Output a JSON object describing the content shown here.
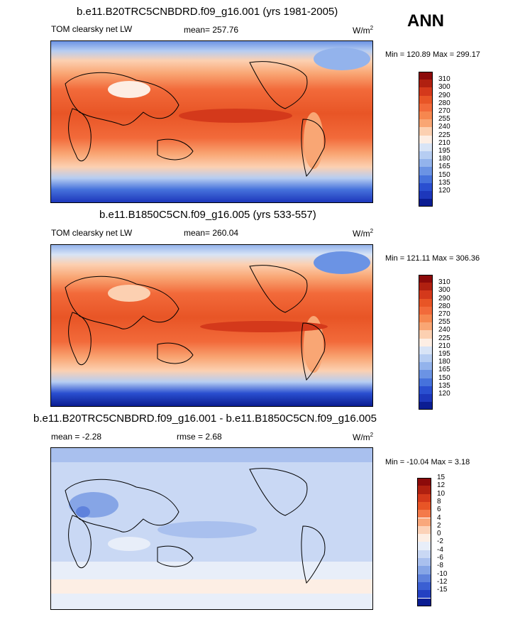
{
  "season": "ANN",
  "chart_data": [
    {
      "type": "heatmap",
      "title": "b.e11.B20TRC5CNBDRD.f09_g16.001 (yrs 1981-2005)",
      "variable": "TOM clearsky net LW",
      "stat_text": "mean= 257.76",
      "mean": 257.76,
      "units_base": "W/m",
      "units_exp": "2",
      "minmax_text": "Min = 120.89 Max = 299.17",
      "min": 120.89,
      "max": 299.17,
      "levels": [
        "310",
        "300",
        "290",
        "280",
        "270",
        "255",
        "240",
        "225",
        "210",
        "195",
        "180",
        "165",
        "150",
        "135",
        "120"
      ],
      "colors": [
        "#8c0a0a",
        "#b02010",
        "#d4391b",
        "#e85526",
        "#f26a3a",
        "#f6874f",
        "#f9a674",
        "#fcd0b1",
        "#fdeee4",
        "#d8e4f6",
        "#b6cdf2",
        "#93b3ec",
        "#6b93e4",
        "#4672dc",
        "#2a4fd0",
        "#1d37bb",
        "#0b1d92"
      ]
    },
    {
      "type": "heatmap",
      "title": "b.e11.B1850C5CN.f09_g16.005 (yrs 533-557)",
      "variable": "TOM clearsky net LW",
      "stat_text": "mean= 260.04",
      "mean": 260.04,
      "units_base": "W/m",
      "units_exp": "2",
      "minmax_text": "Min = 121.11 Max = 306.36",
      "min": 121.11,
      "max": 306.36,
      "levels": [
        "310",
        "300",
        "290",
        "280",
        "270",
        "255",
        "240",
        "225",
        "210",
        "195",
        "180",
        "165",
        "150",
        "135",
        "120"
      ],
      "colors": [
        "#8c0a0a",
        "#b02010",
        "#d4391b",
        "#e85526",
        "#f26a3a",
        "#f6874f",
        "#f9a674",
        "#fcd0b1",
        "#fdeee4",
        "#d8e4f6",
        "#b6cdf2",
        "#93b3ec",
        "#6b93e4",
        "#4672dc",
        "#2a4fd0",
        "#1d37bb",
        "#0b1d92"
      ]
    },
    {
      "type": "heatmap",
      "title": "b.e11.B20TRC5CNBDRD.f09_g16.001 - b.e11.B1850C5CN.f09_g16.005",
      "variable": "",
      "stat_text": "mean =  -2.28",
      "mean": -2.28,
      "stat2_text": "rmse =   2.68",
      "rmse": 2.68,
      "units_base": "W/m",
      "units_exp": "2",
      "minmax_text": "Min = -10.04 Max =   3.18",
      "min": -10.04,
      "max": 3.18,
      "levels": [
        "15",
        "12",
        "10",
        "8",
        "6",
        "4",
        "2",
        "0",
        "-2",
        "-4",
        "-6",
        "-8",
        "-10",
        "-12",
        "-15"
      ],
      "colors": [
        "#8c0a0a",
        "#b02010",
        "#d4391b",
        "#e85526",
        "#f47a4a",
        "#f9a87c",
        "#fcd2b8",
        "#fdeee4",
        "#e8eef9",
        "#c9d8f4",
        "#a9c0ee",
        "#86a5e6",
        "#5f82dc",
        "#3b5fd2",
        "#2340c2",
        "#0b1d92"
      ]
    }
  ]
}
